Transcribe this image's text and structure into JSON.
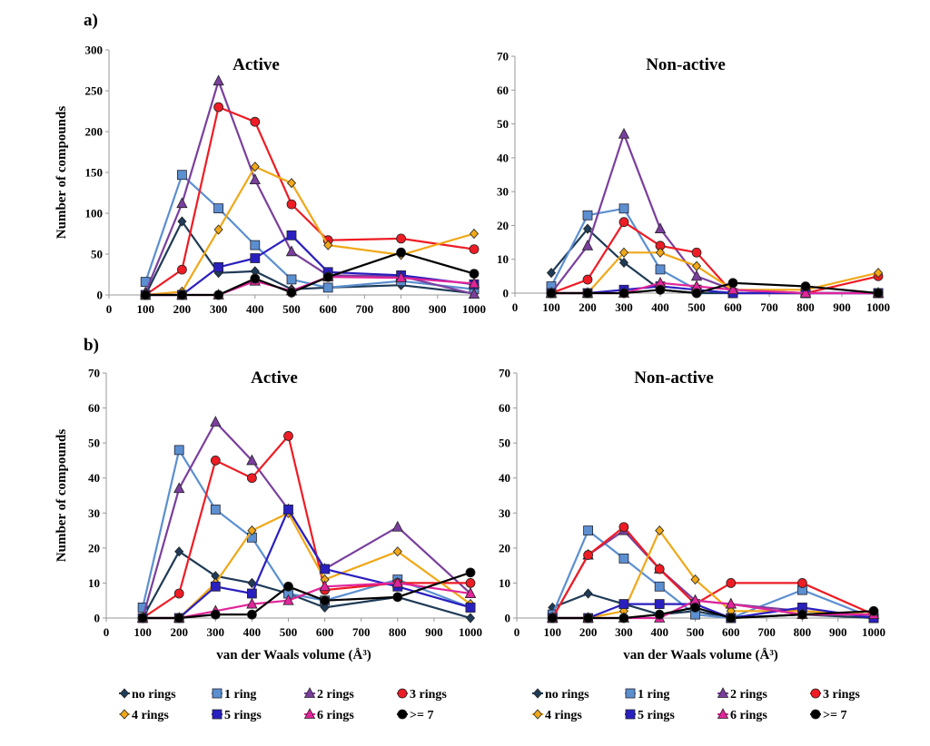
{
  "figure": {
    "label_a": "a)",
    "label_b": "b)"
  },
  "series_styles": [
    {
      "name": "no rings",
      "color": "#1f3b57",
      "marker": "diamond"
    },
    {
      "name": "1 ring",
      "color": "#5b8fd0",
      "marker": "square"
    },
    {
      "name": "2 rings",
      "color": "#7a3f9d",
      "marker": "triangle"
    },
    {
      "name": "3 rings",
      "color": "#ee1c24",
      "marker": "circle"
    },
    {
      "name": "4 rings",
      "color": "#f0a818",
      "marker": "diamond"
    },
    {
      "name": "5 rings",
      "color": "#2a1fbf",
      "marker": "square"
    },
    {
      "name": "6 rings",
      "color": "#e0259a",
      "marker": "triangle"
    },
    {
      "name": ">= 7",
      "color": "#000000",
      "marker": "circle"
    }
  ],
  "chart_data": [
    {
      "id": "a-active",
      "type": "line",
      "title": "Active",
      "xlabel": "",
      "ylabel": "Number of compounds",
      "categories": [
        "0",
        "100",
        "200",
        "300",
        "400",
        "500",
        "600",
        "700",
        "800",
        "900",
        "1000"
      ],
      "x": [
        100,
        200,
        300,
        400,
        500,
        600,
        800,
        1000
      ],
      "ylim": [
        0,
        300
      ],
      "yticks": [
        0,
        50,
        100,
        150,
        200,
        250,
        300
      ],
      "series": [
        {
          "name": "no rings",
          "values": [
            0,
            90,
            27,
            29,
            7,
            9,
            12,
            2
          ]
        },
        {
          "name": "1 ring",
          "values": [
            16,
            147,
            106,
            61,
            19,
            9,
            17,
            7
          ]
        },
        {
          "name": "2 rings",
          "values": [
            3,
            112,
            262,
            141,
            53,
            24,
            23,
            1
          ]
        },
        {
          "name": "3 rings",
          "values": [
            0,
            31,
            230,
            212,
            111,
            67,
            69,
            56
          ]
        },
        {
          "name": "4 rings",
          "values": [
            0,
            4,
            80,
            157,
            137,
            61,
            49,
            75
          ]
        },
        {
          "name": "5 rings",
          "values": [
            0,
            0,
            34,
            45,
            73,
            28,
            24,
            13
          ]
        },
        {
          "name": "6 rings",
          "values": [
            0,
            0,
            0,
            17,
            5,
            22,
            21,
            14
          ]
        },
        {
          "name": ">= 7",
          "values": [
            0,
            0,
            0,
            20,
            3,
            22,
            52,
            26
          ]
        }
      ]
    },
    {
      "id": "a-nonactive",
      "type": "line",
      "title": "Non-active",
      "xlabel": "",
      "ylabel": "",
      "categories": [
        "0",
        "100",
        "200",
        "300",
        "400",
        "500",
        "600",
        "700",
        "800",
        "900",
        "1000"
      ],
      "x": [
        100,
        200,
        300,
        400,
        500,
        600,
        800,
        1000
      ],
      "ylim": [
        0,
        70
      ],
      "yticks": [
        0,
        10,
        20,
        30,
        40,
        50,
        60,
        70
      ],
      "series": [
        {
          "name": "no rings",
          "values": [
            6,
            19,
            9,
            1,
            0,
            0,
            0,
            0
          ]
        },
        {
          "name": "1 ring",
          "values": [
            2,
            23,
            25,
            7,
            1,
            0,
            0,
            0
          ]
        },
        {
          "name": "2 rings",
          "values": [
            0,
            14,
            47,
            19,
            5,
            1,
            0,
            0
          ]
        },
        {
          "name": "3 rings",
          "values": [
            0,
            4,
            21,
            14,
            12,
            0,
            0,
            5
          ]
        },
        {
          "name": "4 rings",
          "values": [
            0,
            0,
            12,
            12,
            8,
            1,
            1,
            6
          ]
        },
        {
          "name": "5 rings",
          "values": [
            0,
            0,
            1,
            2,
            1,
            0,
            0,
            0
          ]
        },
        {
          "name": "6 rings",
          "values": [
            0,
            0,
            0,
            3,
            2,
            1,
            0,
            0
          ]
        },
        {
          "name": ">= 7",
          "values": [
            0,
            0,
            0,
            1,
            0,
            3,
            2,
            0
          ]
        }
      ]
    },
    {
      "id": "b-active",
      "type": "line",
      "title": "Active",
      "xlabel": "van der Waals volume (Å³)",
      "ylabel": "Number of compounds",
      "categories": [
        "0",
        "100",
        "200",
        "300",
        "400",
        "500",
        "600",
        "700",
        "800",
        "900",
        "1000"
      ],
      "x": [
        100,
        200,
        300,
        400,
        500,
        600,
        800,
        1000
      ],
      "ylim": [
        0,
        70
      ],
      "yticks": [
        0,
        10,
        20,
        30,
        40,
        50,
        60,
        70
      ],
      "series": [
        {
          "name": "no rings",
          "values": [
            0,
            19,
            12,
            10,
            7,
            3,
            6,
            0
          ]
        },
        {
          "name": "1 ring",
          "values": [
            3,
            48,
            31,
            23,
            7,
            5,
            11,
            3
          ]
        },
        {
          "name": "2 rings",
          "values": [
            0,
            37,
            56,
            45,
            31,
            14,
            26,
            7
          ]
        },
        {
          "name": "3 rings",
          "values": [
            0,
            7,
            45,
            40,
            52,
            8,
            10,
            10
          ]
        },
        {
          "name": "4 rings",
          "values": [
            0,
            0,
            10,
            25,
            30,
            11,
            19,
            4
          ]
        },
        {
          "name": "5 rings",
          "values": [
            0,
            0,
            9,
            7,
            31,
            14,
            9,
            3
          ]
        },
        {
          "name": "6 rings",
          "values": [
            0,
            0,
            2,
            4,
            5,
            9,
            10,
            7
          ]
        },
        {
          "name": ">= 7",
          "values": [
            0,
            0,
            1,
            1,
            9,
            5,
            6,
            13
          ]
        }
      ]
    },
    {
      "id": "b-nonactive",
      "type": "line",
      "title": "Non-active",
      "xlabel": "van der Waals volume (Å³)",
      "ylabel": "",
      "categories": [
        "0",
        "100",
        "200",
        "300",
        "400",
        "500",
        "600",
        "700",
        "800",
        "900",
        "1000"
      ],
      "x": [
        100,
        200,
        300,
        400,
        500,
        600,
        800,
        1000
      ],
      "ylim": [
        0,
        70
      ],
      "yticks": [
        0,
        10,
        20,
        30,
        40,
        50,
        60,
        70
      ],
      "series": [
        {
          "name": "no rings",
          "values": [
            3,
            7,
            4,
            1,
            2,
            0,
            1,
            0
          ]
        },
        {
          "name": "1 ring",
          "values": [
            1,
            25,
            17,
            9,
            1,
            0,
            8,
            0
          ]
        },
        {
          "name": "2 rings",
          "values": [
            0,
            18,
            25,
            14,
            5,
            4,
            2,
            1
          ]
        },
        {
          "name": "3 rings",
          "values": [
            0,
            18,
            26,
            14,
            4,
            10,
            10,
            1
          ]
        },
        {
          "name": "4 rings",
          "values": [
            0,
            0,
            2,
            25,
            11,
            2,
            2,
            1
          ]
        },
        {
          "name": "5 rings",
          "values": [
            0,
            0,
            4,
            4,
            4,
            0,
            3,
            0
          ]
        },
        {
          "name": "6 rings",
          "values": [
            0,
            0,
            0,
            0,
            5,
            4,
            1,
            1
          ]
        },
        {
          "name": ">= 7",
          "values": [
            0,
            0,
            0,
            1,
            3,
            0,
            1,
            2
          ]
        }
      ]
    }
  ]
}
